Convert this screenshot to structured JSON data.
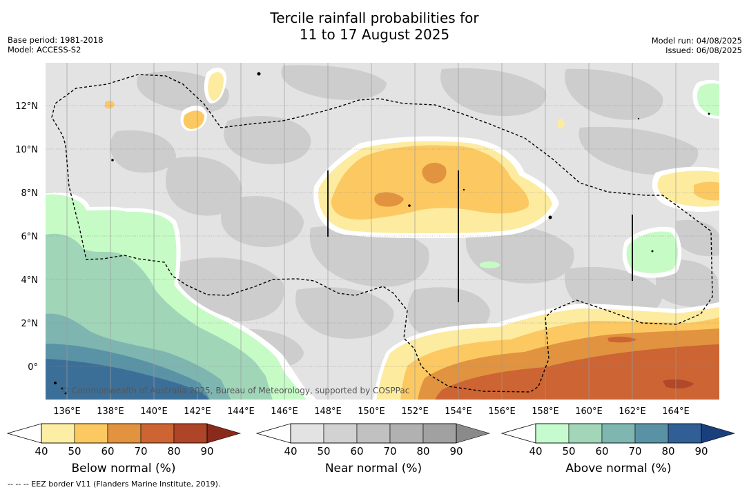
{
  "title": {
    "line1": "Tercile rainfall probabilities for",
    "line2": "11 to 17 August 2025"
  },
  "meta": {
    "base_period": "Base period: 1981-2018",
    "model": "Model: ACCESS-S2",
    "model_run": "Model run: 04/08/2025",
    "issued": "Issued: 06/08/2025"
  },
  "map": {
    "lon_labels": [
      "136°E",
      "138°E",
      "140°E",
      "142°E",
      "144°E",
      "146°E",
      "148°E",
      "150°E",
      "152°E",
      "154°E",
      "156°E",
      "158°E",
      "160°E",
      "162°E",
      "164°E"
    ],
    "lat_labels": [
      "12°N",
      "10°N",
      "8°N",
      "6°N",
      "4°N",
      "2°N",
      "0°"
    ],
    "credit": "© Commonwealth of Australia 2025, Bureau of Meteorology, supported by COSPPac",
    "colors": {
      "near_40": "#e3e3e3",
      "near_50": "#cdcdcd",
      "below_40": "#fdeb9f",
      "below_50": "#fcc862",
      "below_60": "#e1933f",
      "below_70": "#cd6433",
      "above_40": "#c6fbc6",
      "above_50": "#a0d5b8",
      "above_60": "#7fb5b0",
      "above_70": "#5a93a6",
      "above_80": "#3c6f98"
    }
  },
  "colorbars": [
    {
      "label": "Below normal (%)",
      "ticks": [
        "40",
        "50",
        "60",
        "70",
        "80",
        "90"
      ],
      "colors": [
        "#fdeea6",
        "#fcc862",
        "#e1933f",
        "#cd6433",
        "#ae4528",
        "#8a2a1c"
      ]
    },
    {
      "label": "Near normal (%)",
      "ticks": [
        "40",
        "50",
        "60",
        "70",
        "80",
        "90"
      ],
      "colors": [
        "#e3e3e3",
        "#d2d2d2",
        "#c1c1c1",
        "#b1b1b1",
        "#a1a1a1",
        "#8a8a8a"
      ]
    },
    {
      "label": "Above normal (%)",
      "ticks": [
        "40",
        "50",
        "60",
        "70",
        "80",
        "90"
      ],
      "colors": [
        "#c6fbcf",
        "#a3d6b9",
        "#80b6b0",
        "#5a92a5",
        "#315f95",
        "#1a3f7d"
      ]
    }
  ],
  "footnote": "--  --  -- EEZ border V11 (Flanders Marine Institute, 2019)."
}
